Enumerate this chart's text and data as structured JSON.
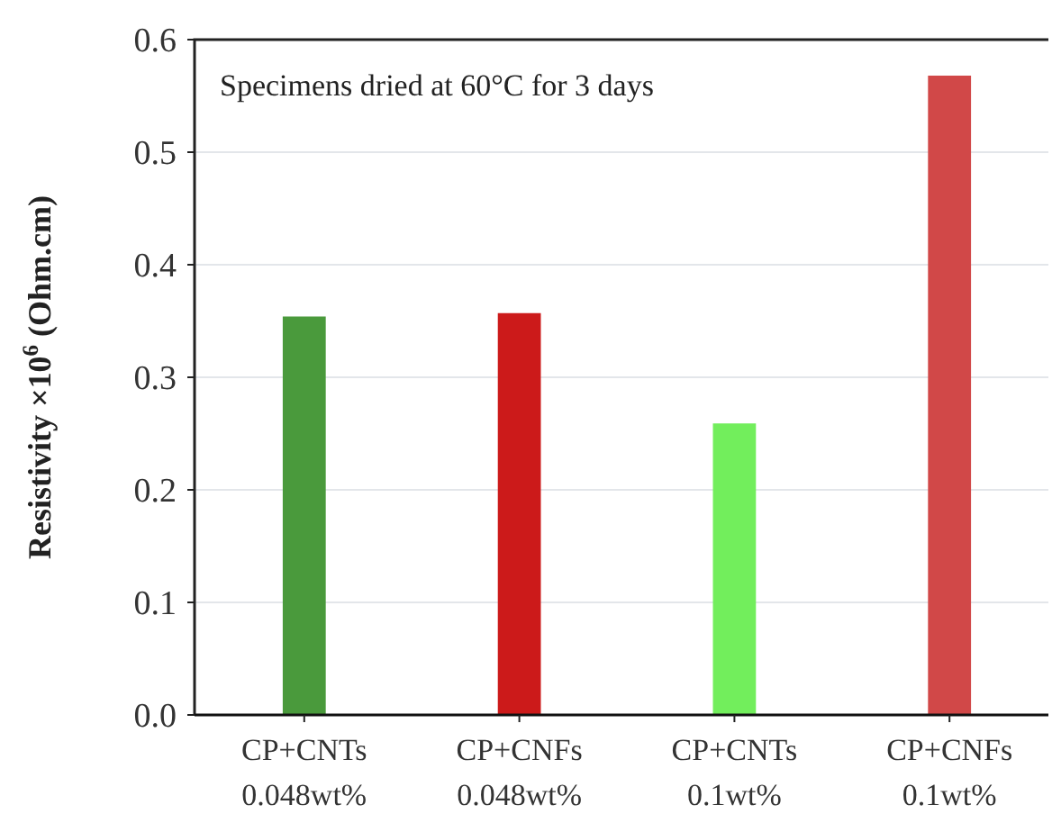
{
  "chart_data": {
    "type": "bar",
    "ylabel": "Resistivity ×10$^{6}$ (Ohm.cm)",
    "annotations": [
      "Specimens dried at 60°C for 3 days"
    ],
    "categories": [
      "CP+CNTs\n0.048wt%",
      "CP+CNFs\n0.048wt%",
      "CP+CNTs\n0.1wt%",
      "CP+CNFs\n0.1wt%"
    ],
    "values": [
      0.354,
      0.357,
      0.259,
      0.568
    ],
    "colors": [
      "#4a9a3c",
      "#cc1a1a",
      "#72ee5c",
      "#d14848"
    ],
    "ylim": [
      0,
      0.6
    ],
    "yticks": [
      {
        "value": 0,
        "label": "0.0"
      },
      0.1,
      0.2,
      0.3,
      0.4,
      0.5,
      0.6
    ],
    "grid": "y"
  }
}
